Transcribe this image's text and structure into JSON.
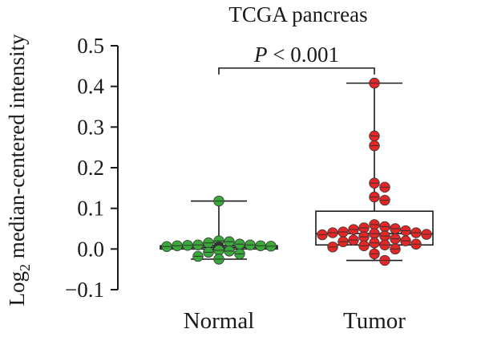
{
  "chart_data": {
    "type": "box",
    "title": "TCGA pancreas",
    "ylabel_prefix": "Log",
    "ylabel_subscript": "2",
    "ylabel_suffix": " median-centered intensity",
    "xlabel": "",
    "ylim": [
      -0.1,
      0.5
    ],
    "yticks": [
      -0.1,
      0.0,
      0.1,
      0.2,
      0.3,
      0.4,
      0.5
    ],
    "ytick_labels": [
      "−0.1",
      "0.0",
      "0.1",
      "0.2",
      "0.3",
      "0.4",
      "0.5"
    ],
    "categories": [
      "Normal",
      "Tumor"
    ],
    "groups": [
      {
        "name": "Normal",
        "color": "#3aa83a",
        "whisker_low": -0.025,
        "q1": 0.0,
        "median": 0.004,
        "q3": 0.008,
        "whisker_high": 0.118,
        "points": [
          0.118,
          0.02,
          0.018,
          0.015,
          0.012,
          0.01,
          0.01,
          0.009,
          0.008,
          0.008,
          0.007,
          0.006,
          0.005,
          0.005,
          0.004,
          0.004,
          0.003,
          0.002,
          0.002,
          0.001,
          0.0,
          0.0,
          -0.001,
          -0.002,
          -0.003,
          -0.005,
          -0.008,
          -0.012,
          -0.018,
          -0.025
        ]
      },
      {
        "name": "Tumor",
        "color": "#e32626",
        "whisker_low": -0.028,
        "q1": 0.01,
        "median": 0.038,
        "q3": 0.093,
        "whisker_high": 0.408,
        "points": [
          0.408,
          0.278,
          0.254,
          0.162,
          0.152,
          0.128,
          0.12,
          0.06,
          0.055,
          0.052,
          0.05,
          0.048,
          0.045,
          0.042,
          0.04,
          0.04,
          0.038,
          0.036,
          0.035,
          0.032,
          0.03,
          0.025,
          0.022,
          0.02,
          0.018,
          0.015,
          0.012,
          0.01,
          0.008,
          0.005,
          0.0,
          -0.012,
          -0.028
        ]
      }
    ],
    "annotation": {
      "prefix": "P",
      "text": " < 0.001",
      "y": 0.445
    },
    "grid": false,
    "legend": "none"
  }
}
